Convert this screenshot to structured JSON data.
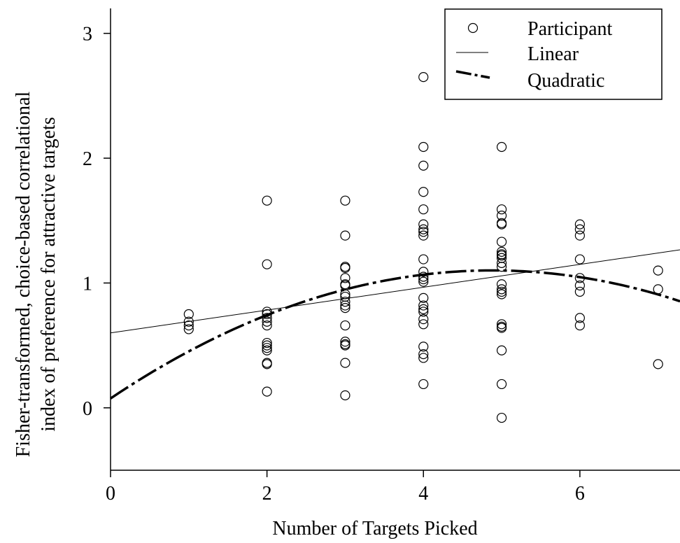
{
  "chart_data": {
    "type": "scatter",
    "title": "",
    "xlabel": "Number of Targets Picked",
    "ylabel_lines": [
      "Fisher-transformed, choice-based correlational",
      "index of preference for attractive targets"
    ],
    "xlim": [
      0,
      7.28
    ],
    "ylim": [
      -0.5,
      3.2
    ],
    "xticks": [
      0,
      2,
      4,
      6
    ],
    "yticks": [
      0,
      1,
      2,
      3
    ],
    "grid": false,
    "legend_position": "top-right",
    "series": [
      {
        "name": "Participant",
        "kind": "points",
        "marker": "open-circle",
        "points": [
          [
            1,
            0.75
          ],
          [
            1,
            0.69
          ],
          [
            1,
            0.66
          ],
          [
            1,
            0.63
          ],
          [
            2,
            1.66
          ],
          [
            2,
            1.15
          ],
          [
            2,
            0.77
          ],
          [
            2,
            0.75
          ],
          [
            2,
            0.72
          ],
          [
            2,
            0.69
          ],
          [
            2,
            0.66
          ],
          [
            2,
            0.52
          ],
          [
            2,
            0.5
          ],
          [
            2,
            0.48
          ],
          [
            2,
            0.46
          ],
          [
            2,
            0.36
          ],
          [
            2,
            0.35
          ],
          [
            2,
            0.13
          ],
          [
            3,
            1.66
          ],
          [
            3,
            1.38
          ],
          [
            3,
            1.13
          ],
          [
            3,
            1.12
          ],
          [
            3,
            1.04
          ],
          [
            3,
            0.99
          ],
          [
            3,
            0.98
          ],
          [
            3,
            0.91
          ],
          [
            3,
            0.89
          ],
          [
            3,
            0.85
          ],
          [
            3,
            0.82
          ],
          [
            3,
            0.8
          ],
          [
            3,
            0.66
          ],
          [
            3,
            0.53
          ],
          [
            3,
            0.51
          ],
          [
            3,
            0.5
          ],
          [
            3,
            0.36
          ],
          [
            3,
            0.1
          ],
          [
            4,
            2.65
          ],
          [
            4,
            2.09
          ],
          [
            4,
            1.94
          ],
          [
            4,
            1.73
          ],
          [
            4,
            1.59
          ],
          [
            4,
            1.47
          ],
          [
            4,
            1.43
          ],
          [
            4,
            1.41
          ],
          [
            4,
            1.38
          ],
          [
            4,
            1.19
          ],
          [
            4,
            1.09
          ],
          [
            4,
            1.05
          ],
          [
            4,
            1.03
          ],
          [
            4,
            1.01
          ],
          [
            4,
            0.88
          ],
          [
            4,
            0.82
          ],
          [
            4,
            0.79
          ],
          [
            4,
            0.77
          ],
          [
            4,
            0.71
          ],
          [
            4,
            0.67
          ],
          [
            4,
            0.49
          ],
          [
            4,
            0.43
          ],
          [
            4,
            0.4
          ],
          [
            4,
            0.19
          ],
          [
            5,
            2.09
          ],
          [
            5,
            1.59
          ],
          [
            5,
            1.54
          ],
          [
            5,
            1.48
          ],
          [
            5,
            1.47
          ],
          [
            5,
            1.33
          ],
          [
            5,
            1.25
          ],
          [
            5,
            1.23
          ],
          [
            5,
            1.22
          ],
          [
            5,
            1.2
          ],
          [
            5,
            1.16
          ],
          [
            5,
            1.13
          ],
          [
            5,
            0.99
          ],
          [
            5,
            0.95
          ],
          [
            5,
            0.93
          ],
          [
            5,
            0.91
          ],
          [
            5,
            0.67
          ],
          [
            5,
            0.65
          ],
          [
            5,
            0.64
          ],
          [
            5,
            0.46
          ],
          [
            5,
            0.19
          ],
          [
            5,
            -0.08
          ],
          [
            6,
            1.47
          ],
          [
            6,
            1.43
          ],
          [
            6,
            1.38
          ],
          [
            6,
            1.19
          ],
          [
            6,
            1.04
          ],
          [
            6,
            0.98
          ],
          [
            6,
            0.93
          ],
          [
            6,
            0.72
          ],
          [
            6,
            0.66
          ],
          [
            7,
            1.1
          ],
          [
            7,
            0.95
          ],
          [
            7,
            0.35
          ]
        ]
      },
      {
        "name": "Linear",
        "kind": "line",
        "style": "solid-thin",
        "intercept": 0.6,
        "slope": 0.0915
      },
      {
        "name": "Quadratic",
        "kind": "curve",
        "style": "long-dash-dot",
        "a": 0.075,
        "b": 0.42,
        "c": -0.043
      }
    ]
  }
}
